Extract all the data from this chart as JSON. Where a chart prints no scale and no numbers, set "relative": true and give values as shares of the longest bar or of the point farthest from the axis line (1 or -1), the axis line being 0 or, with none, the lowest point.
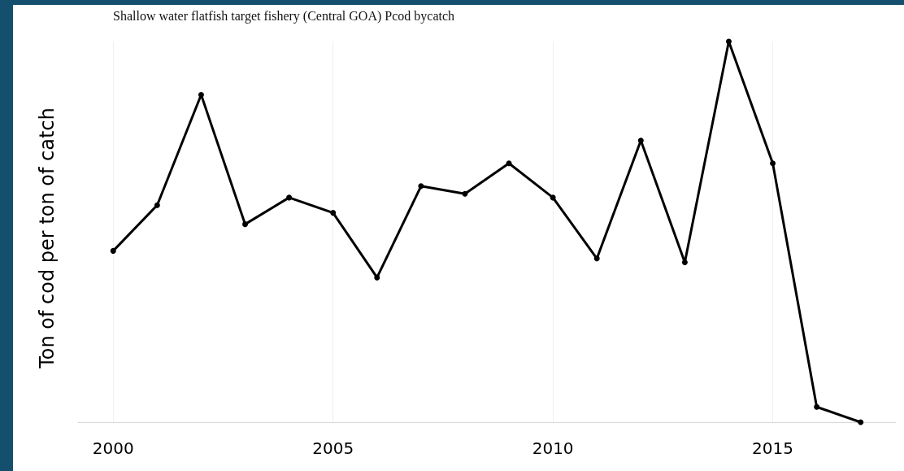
{
  "chart_data": {
    "type": "line",
    "title": "Shallow water flatfish target fishery (Central GOA) Pcod bycatch",
    "ylabel": "Ton of cod per ton of catch",
    "relative": true,
    "x": [
      2000,
      2001,
      2002,
      2003,
      2004,
      2005,
      2006,
      2007,
      2008,
      2009,
      2010,
      2011,
      2012,
      2013,
      2014,
      2015,
      2016,
      2017
    ],
    "series": [
      {
        "color": "#000000",
        "values": [
          0.45,
          0.57,
          0.86,
          0.52,
          0.59,
          0.55,
          0.38,
          0.62,
          0.6,
          0.68,
          0.59,
          0.43,
          0.74,
          0.42,
          1,
          0.68,
          0.04,
          0
        ]
      }
    ],
    "xlim": [
      1999.2,
      2017.8
    ],
    "xticks": [
      2000,
      2005,
      2010,
      2015
    ],
    "grid": true,
    "marker": "circle",
    "line_style": "solid"
  }
}
